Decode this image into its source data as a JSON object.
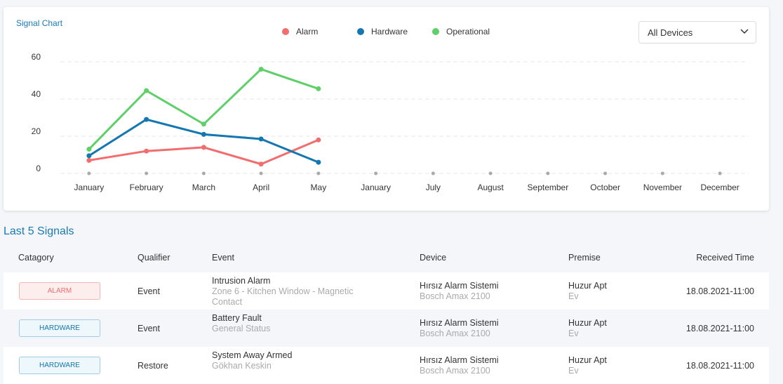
{
  "chart_data": {
    "type": "line",
    "title": "Signal Chart",
    "categories": [
      "January",
      "February",
      "March",
      "April",
      "May",
      "January",
      "July",
      "August",
      "September",
      "October",
      "November",
      "December"
    ],
    "series": [
      {
        "name": "Alarm",
        "color": "#f26d6d",
        "values": [
          7,
          12,
          14,
          5,
          18,
          null,
          null,
          null,
          null,
          null,
          null,
          null
        ]
      },
      {
        "name": "Hardware",
        "color": "#1477b0",
        "values": [
          9.5,
          29,
          21,
          18.5,
          6,
          null,
          null,
          null,
          null,
          null,
          null,
          null
        ]
      },
      {
        "name": "Operational",
        "color": "#5fcf6a",
        "values": [
          13,
          44.5,
          26.5,
          56,
          45.5,
          null,
          null,
          null,
          null,
          null,
          null,
          null
        ]
      }
    ],
    "ylim": [
      0,
      60
    ],
    "yticks": [
      0,
      20,
      40,
      60
    ],
    "grid": true
  },
  "filter": {
    "label": "All Devices"
  },
  "table": {
    "title": "Last 5 Signals",
    "headers": [
      "Catagory",
      "Qualifier",
      "Event",
      "Device",
      "Premise",
      "Received Time"
    ],
    "rows": [
      {
        "category": "ALARM",
        "qualifier": "Event",
        "event": "Intrusion Alarm",
        "event_detail": "Zone 6 - Kitchen Window - Magnetic Contact",
        "device": "Hırsız Alarm Sistemi",
        "device_detail": "Bosch Amax 2100",
        "premise": "Huzur Apt",
        "premise_detail": "Ev",
        "time": "18.08.2021-11:00"
      },
      {
        "category": "HARDWARE",
        "qualifier": "Event",
        "event": "Battery Fault",
        "event_detail": "General Status",
        "device": "Hırsız Alarm Sistemi",
        "device_detail": "Bosch Amax 2100",
        "premise": "Huzur Apt",
        "premise_detail": "Ev",
        "time": "18.08.2021-11:00"
      },
      {
        "category": "HARDWARE",
        "qualifier": "Restore",
        "event": "System Away Armed",
        "event_detail": "Gökhan Keskin",
        "device": "Hırsız Alarm Sistemi",
        "device_detail": "Bosch Amax 2100",
        "premise": "Huzur Apt",
        "premise_detail": "Ev",
        "time": "18.08.2021-11:00"
      }
    ]
  }
}
